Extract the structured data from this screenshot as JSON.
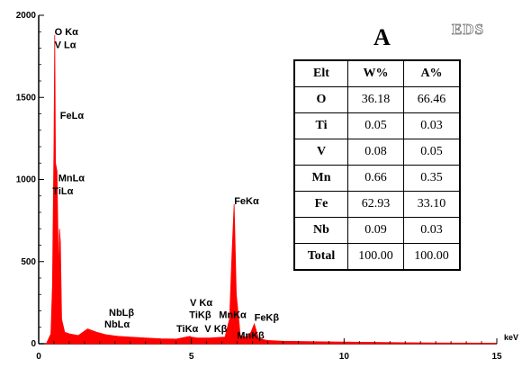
{
  "chart_data": {
    "type": "line",
    "xlabel": "keV",
    "xlim": [
      0,
      15
    ],
    "ylim": [
      0,
      2000
    ],
    "x_ticks": [
      "0",
      "5",
      "10",
      "15"
    ],
    "y_ticks": [
      "0",
      "500",
      "1000",
      "1500",
      "2000"
    ],
    "series": [
      {
        "x": [
          0.0,
          0.25,
          0.4,
          0.45,
          0.5,
          0.525,
          0.55,
          0.6,
          0.65,
          0.68,
          0.71,
          0.75,
          0.85,
          1.0,
          1.3,
          1.6,
          1.9,
          2.2,
          2.6,
          3.0,
          3.5,
          4.0,
          4.5,
          4.95,
          5.0,
          5.2,
          5.43,
          5.6,
          5.9,
          6.1,
          6.25,
          6.33,
          6.4,
          6.47,
          6.6,
          6.8,
          6.95,
          7.06,
          7.2,
          7.5,
          8.0,
          9.0,
          10.0,
          11.0,
          12.0,
          13.0,
          14.0,
          15.0
        ],
        "y": [
          0,
          0,
          60,
          350,
          1200,
          1880,
          1100,
          1050,
          400,
          700,
          620,
          150,
          70,
          60,
          50,
          90,
          70,
          55,
          45,
          40,
          35,
          30,
          28,
          45,
          40,
          35,
          35,
          35,
          38,
          40,
          150,
          550,
          850,
          300,
          50,
          40,
          70,
          120,
          30,
          20,
          15,
          12,
          10,
          8,
          6,
          5,
          4,
          3
        ]
      }
    ],
    "peak_labels": [
      {
        "text": "O Kα",
        "x": 0.52,
        "y": 1880
      },
      {
        "text": "V Lα",
        "x": 0.52,
        "y": 1800
      },
      {
        "text": "FeLα",
        "x": 0.7,
        "y": 1370
      },
      {
        "text": "MnLα",
        "x": 0.64,
        "y": 990
      },
      {
        "text": "TiLα",
        "x": 0.45,
        "y": 910
      },
      {
        "text": "FeKα",
        "x": 6.4,
        "y": 850
      },
      {
        "text": "NbLβ",
        "x": 2.3,
        "y": 170
      },
      {
        "text": "NbLα",
        "x": 2.15,
        "y": 100
      },
      {
        "text": "V Kα",
        "x": 4.95,
        "y": 230
      },
      {
        "text": "TiKβ",
        "x": 4.93,
        "y": 155
      },
      {
        "text": "MnKα",
        "x": 5.9,
        "y": 155
      },
      {
        "text": "FeKβ",
        "x": 7.06,
        "y": 140
      },
      {
        "text": "TiKα",
        "x": 4.51,
        "y": 70
      },
      {
        "text": "V Kβ",
        "x": 5.43,
        "y": 70
      },
      {
        "text": "MnKβ",
        "x": 6.49,
        "y": 30
      }
    ]
  },
  "panel_label": "A",
  "logo_text": "EDS",
  "table": {
    "headers": [
      "Elt",
      "W%",
      "A%"
    ],
    "rows": [
      [
        "O",
        "36.18",
        "66.46"
      ],
      [
        "Ti",
        "0.05",
        "0.03"
      ],
      [
        "V",
        "0.08",
        "0.05"
      ],
      [
        "Mn",
        "0.66",
        "0.35"
      ],
      [
        "Fe",
        "62.93",
        "33.10"
      ],
      [
        "Nb",
        "0.09",
        "0.03"
      ],
      [
        "Total",
        "100.00",
        "100.00"
      ]
    ]
  },
  "colors": {
    "spectrum": "#ff0000",
    "axis": "#000000"
  }
}
